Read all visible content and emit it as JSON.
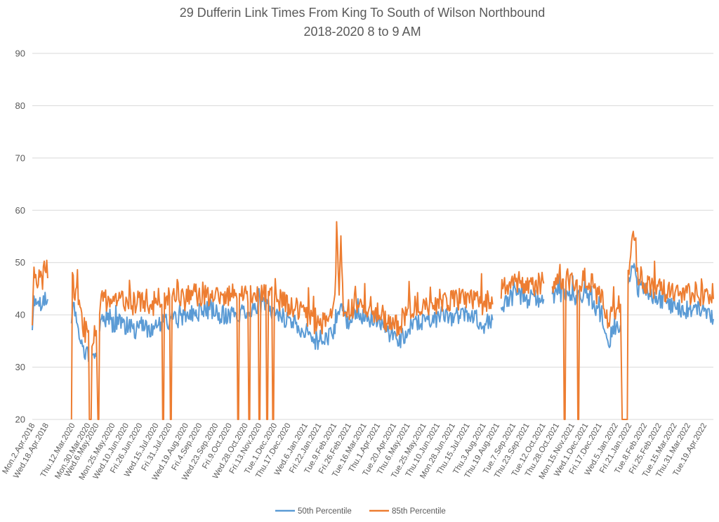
{
  "chart_data": {
    "type": "line",
    "title": "29 Dufferin Link Times From King To South of Wilson Northbound",
    "subtitle": "2018-2020 8 to 9 AM",
    "xlabel": "",
    "ylabel": "",
    "ylim": [
      20,
      90
    ],
    "yticks": [
      "20",
      "30",
      "40",
      "50",
      "60",
      "70",
      "80",
      "90"
    ],
    "grid": true,
    "legend_position": "bottom",
    "x_tick_labels": [
      "Mon.2.Apr.2018",
      "Wed.18.Apr.2018",
      "Thu.12.Mar.2020",
      "Mon.30.Mar.2020",
      "Wed.6.May.2020",
      "Mon.25.May.2020",
      "Wed.10.Jun.2020",
      "Fri.26.Jun.2020",
      "Wed.15.Jul.2020",
      "Fri.31.Jul.2020",
      "Wed.19.Aug.2020",
      "Fri.4.Sep.2020",
      "Wed.23.Sep.2020",
      "Fri.9.Oct.2020",
      "Wed.28.Oct.2020",
      "Fri.13.Nov.2020",
      "Tue.1.Dec.2020",
      "Thu.17.Dec.2020",
      "Wed.6.Jan.2021",
      "Fri.22.Jan.2021",
      "Tue.9.Feb.2021",
      "Fri.26.Feb.2021",
      "Tue.16.Mar.2021",
      "Thu.1.Apr.2021",
      "Tue.20.Apr.2021",
      "Thu.6.May.2021",
      "Tue.25.May.2021",
      "Thu.10.Jun.2021",
      "Mon.28.Jun.2021",
      "Thu.15.Jul.2021",
      "Thu.3.Aug.2021",
      "Thu.19.Aug.2021",
      "Tue.7.Sep.2021",
      "Thu.23.Sep.2021",
      "Tue.12.Oct.2021",
      "Thu.28.Oct.2021",
      "Mon.15.Nov.2021",
      "Wed.1.Dec.2021",
      "Fri.17.Dec.2021",
      "Wed.5.Jan.2022",
      "Fri.21.Jan.2022",
      "Tue.8.Feb.2022",
      "Fri.25.Feb.2022",
      "Tue.15.Mar.2022",
      "Thu.31.Mar.2022",
      "Tue.19.Apr.2022"
    ],
    "x_tick_positions": [
      0,
      16,
      47,
      65,
      75,
      94,
      110,
      126,
      145,
      161,
      180,
      196,
      215,
      231,
      250,
      266,
      284,
      300,
      320,
      336,
      354,
      371,
      389,
      405,
      424,
      440,
      459,
      475,
      493,
      510,
      529,
      545,
      564,
      580,
      599,
      615,
      633,
      649,
      665,
      684,
      700,
      718,
      735,
      753,
      769,
      788
    ],
    "x_count": 800,
    "series": [
      {
        "name": "50th Percentile",
        "color": "#5b9bd5",
        "anchors": [
          [
            0,
            38
          ],
          [
            2,
            43
          ],
          [
            6,
            43
          ],
          [
            10,
            42
          ],
          [
            14,
            43
          ],
          [
            18,
            43
          ],
          [
            19,
            null
          ],
          [
            45,
            null
          ],
          [
            46,
            40
          ],
          [
            49,
            42
          ],
          [
            52,
            40
          ],
          [
            55,
            35
          ],
          [
            58,
            34
          ],
          [
            62,
            33
          ],
          [
            64,
            33
          ],
          [
            66,
            31
          ],
          [
            67,
            null
          ],
          [
            69,
            null
          ],
          [
            70,
            32
          ],
          [
            73,
            33
          ],
          [
            75,
            32
          ],
          [
            77,
            null
          ],
          [
            78,
            null
          ],
          [
            79,
            38
          ],
          [
            85,
            39
          ],
          [
            90,
            40
          ],
          [
            95,
            38
          ],
          [
            100,
            39
          ],
          [
            110,
            38
          ],
          [
            120,
            37
          ],
          [
            130,
            38
          ],
          [
            140,
            37
          ],
          [
            150,
            38
          ],
          [
            160,
            39
          ],
          [
            170,
            39
          ],
          [
            180,
            40
          ],
          [
            190,
            40
          ],
          [
            200,
            41
          ],
          [
            210,
            41
          ],
          [
            220,
            40
          ],
          [
            230,
            40
          ],
          [
            240,
            40
          ],
          [
            250,
            41
          ],
          [
            260,
            41
          ],
          [
            270,
            42
          ],
          [
            280,
            41
          ],
          [
            290,
            40
          ],
          [
            300,
            39
          ],
          [
            310,
            38
          ],
          [
            320,
            37
          ],
          [
            330,
            35
          ],
          [
            340,
            35
          ],
          [
            350,
            36
          ],
          [
            355,
            38
          ],
          [
            360,
            40
          ],
          [
            362,
            43
          ],
          [
            365,
            40
          ],
          [
            370,
            39
          ],
          [
            380,
            40
          ],
          [
            390,
            40
          ],
          [
            400,
            39
          ],
          [
            410,
            38
          ],
          [
            420,
            36
          ],
          [
            430,
            35
          ],
          [
            440,
            37
          ],
          [
            450,
            38
          ],
          [
            460,
            39
          ],
          [
            470,
            39
          ],
          [
            480,
            40
          ],
          [
            490,
            39
          ],
          [
            500,
            40
          ],
          [
            510,
            40
          ],
          [
            520,
            39
          ],
          [
            530,
            38
          ],
          [
            540,
            39
          ],
          [
            541,
            null
          ],
          [
            549,
            null
          ],
          [
            550,
            42
          ],
          [
            560,
            43
          ],
          [
            570,
            44
          ],
          [
            580,
            43
          ],
          [
            590,
            43
          ],
          [
            600,
            43
          ],
          [
            601,
            null
          ],
          [
            609,
            null
          ],
          [
            610,
            43
          ],
          [
            620,
            44
          ],
          [
            630,
            44
          ],
          [
            640,
            43
          ],
          [
            650,
            44
          ],
          [
            660,
            42
          ],
          [
            670,
            38
          ],
          [
            675,
            34
          ],
          [
            680,
            37
          ],
          [
            690,
            38
          ],
          [
            692,
            null
          ],
          [
            698,
            null
          ],
          [
            699,
            45
          ],
          [
            705,
            50
          ],
          [
            710,
            45
          ],
          [
            720,
            44
          ],
          [
            730,
            43
          ],
          [
            740,
            43
          ],
          [
            750,
            42
          ],
          [
            760,
            41
          ],
          [
            770,
            41
          ],
          [
            780,
            41
          ],
          [
            790,
            40
          ],
          [
            799,
            40
          ]
        ]
      },
      {
        "name": "85th Percentile",
        "color": "#ed7d31",
        "anchors": [
          [
            0,
            39
          ],
          [
            2,
            48
          ],
          [
            6,
            47
          ],
          [
            10,
            46
          ],
          [
            14,
            48
          ],
          [
            18,
            47
          ],
          [
            19,
            null
          ],
          [
            45,
            null
          ],
          [
            46,
            20
          ],
          [
            47,
            49
          ],
          [
            49,
            45
          ],
          [
            52,
            44
          ],
          [
            55,
            41
          ],
          [
            58,
            39
          ],
          [
            62,
            37
          ],
          [
            64,
            36
          ],
          [
            66,
            37
          ],
          [
            67,
            20
          ],
          [
            69,
            20
          ],
          [
            70,
            36
          ],
          [
            73,
            37
          ],
          [
            75,
            37
          ],
          [
            77,
            20
          ],
          [
            78,
            20
          ],
          [
            79,
            42
          ],
          [
            85,
            43
          ],
          [
            90,
            43
          ],
          [
            95,
            42
          ],
          [
            100,
            43
          ],
          [
            110,
            43
          ],
          [
            120,
            42
          ],
          [
            130,
            43
          ],
          [
            140,
            42
          ],
          [
            150,
            43
          ],
          [
            160,
            43
          ],
          [
            170,
            44
          ],
          [
            180,
            43
          ],
          [
            190,
            44
          ],
          [
            200,
            44
          ],
          [
            210,
            44
          ],
          [
            220,
            43
          ],
          [
            230,
            44
          ],
          [
            240,
            44
          ],
          [
            250,
            44
          ],
          [
            260,
            44
          ],
          [
            270,
            45
          ],
          [
            280,
            44
          ],
          [
            290,
            43
          ],
          [
            300,
            42
          ],
          [
            310,
            41
          ],
          [
            320,
            40
          ],
          [
            330,
            38
          ],
          [
            340,
            38
          ],
          [
            350,
            40
          ],
          [
            355,
            43
          ],
          [
            357,
            56
          ],
          [
            360,
            43
          ],
          [
            362,
            56
          ],
          [
            365,
            42
          ],
          [
            370,
            41
          ],
          [
            380,
            42
          ],
          [
            390,
            42
          ],
          [
            400,
            41
          ],
          [
            410,
            40
          ],
          [
            420,
            38
          ],
          [
            430,
            38
          ],
          [
            440,
            41
          ],
          [
            450,
            42
          ],
          [
            460,
            42
          ],
          [
            470,
            42
          ],
          [
            480,
            43
          ],
          [
            490,
            43
          ],
          [
            500,
            43
          ],
          [
            510,
            43
          ],
          [
            520,
            43
          ],
          [
            530,
            42
          ],
          [
            540,
            42
          ],
          [
            541,
            null
          ],
          [
            549,
            null
          ],
          [
            550,
            45
          ],
          [
            560,
            45
          ],
          [
            570,
            46
          ],
          [
            580,
            46
          ],
          [
            590,
            46
          ],
          [
            600,
            46
          ],
          [
            601,
            null
          ],
          [
            609,
            null
          ],
          [
            610,
            46
          ],
          [
            620,
            47
          ],
          [
            630,
            47
          ],
          [
            640,
            46
          ],
          [
            650,
            47
          ],
          [
            660,
            45
          ],
          [
            670,
            42
          ],
          [
            675,
            38
          ],
          [
            680,
            41
          ],
          [
            690,
            42
          ],
          [
            692,
            20
          ],
          [
            698,
            20
          ],
          [
            699,
            48
          ],
          [
            704,
            56
          ],
          [
            710,
            48
          ],
          [
            720,
            46
          ],
          [
            730,
            45
          ],
          [
            740,
            45
          ],
          [
            750,
            44
          ],
          [
            760,
            44
          ],
          [
            770,
            44
          ],
          [
            780,
            44
          ],
          [
            790,
            44
          ],
          [
            799,
            44
          ]
        ],
        "dropouts": [
          46,
          67,
          68,
          69,
          77,
          78,
          153,
          154,
          162,
          163,
          241,
          242,
          254,
          255,
          266,
          267,
          275,
          276,
          282,
          283,
          608,
          609,
          624,
          625,
          640,
          641,
          692,
          693
        ]
      }
    ]
  }
}
